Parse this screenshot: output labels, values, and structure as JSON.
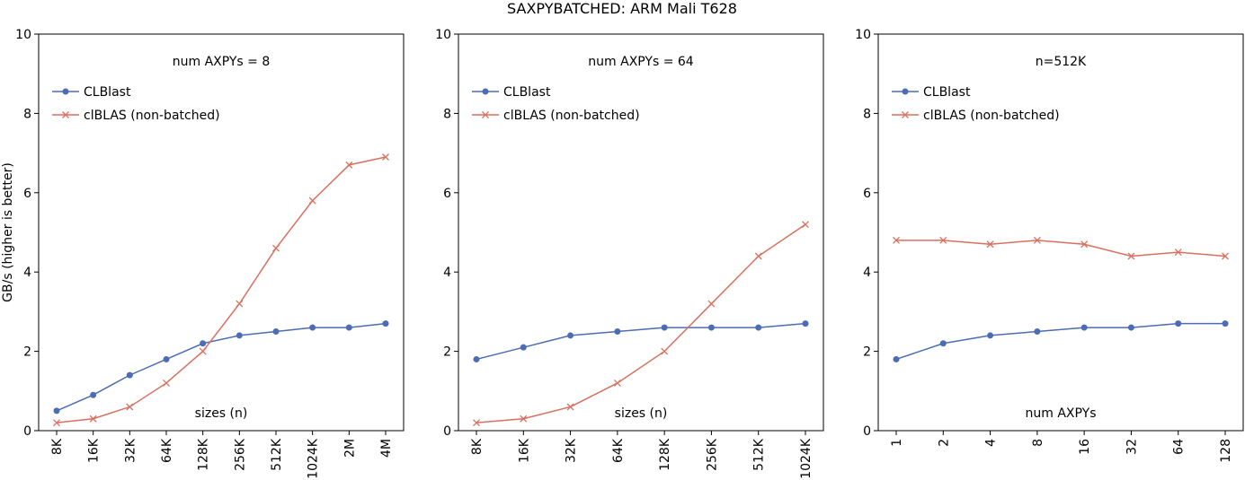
{
  "figure": {
    "title": "SAXPYBATCHED: ARM Mali T628"
  },
  "chart_data": [
    {
      "type": "line",
      "annotation": "num AXPYs = 8",
      "xlabel": "sizes (n)",
      "ylabel": "GB/s (higher is better)",
      "ylim": [
        0,
        10
      ],
      "yticks": [
        "0",
        "2",
        "4",
        "6",
        "8",
        "10"
      ],
      "categories": [
        "8K",
        "16K",
        "32K",
        "64K",
        "128K",
        "256K",
        "512K",
        "1024K",
        "2M",
        "4M"
      ],
      "legend_position": "top-left",
      "grid": false,
      "series": [
        {
          "name": "CLBlast",
          "color": "#4c6cb3",
          "marker": "circle",
          "values": [
            0.5,
            0.9,
            1.4,
            1.8,
            2.2,
            2.4,
            2.5,
            2.6,
            2.6,
            2.7
          ]
        },
        {
          "name": "clBLAS (non-batched)",
          "color": "#d9705f",
          "marker": "x",
          "values": [
            0.2,
            0.3,
            0.6,
            1.2,
            2.0,
            3.2,
            4.6,
            5.8,
            6.7,
            6.9
          ]
        }
      ]
    },
    {
      "type": "line",
      "annotation": "num AXPYs = 64",
      "xlabel": "sizes (n)",
      "ylabel": "",
      "ylim": [
        0,
        10
      ],
      "yticks": [
        "0",
        "2",
        "4",
        "6",
        "8",
        "10"
      ],
      "categories": [
        "8K",
        "16K",
        "32K",
        "64K",
        "128K",
        "256K",
        "512K",
        "1024K"
      ],
      "legend_position": "top-left",
      "grid": false,
      "series": [
        {
          "name": "CLBlast",
          "color": "#4c6cb3",
          "marker": "circle",
          "values": [
            1.8,
            2.1,
            2.4,
            2.5,
            2.6,
            2.6,
            2.6,
            2.7
          ]
        },
        {
          "name": "clBLAS (non-batched)",
          "color": "#d9705f",
          "marker": "x",
          "values": [
            0.2,
            0.3,
            0.6,
            1.2,
            2.0,
            3.2,
            4.4,
            5.2
          ]
        }
      ]
    },
    {
      "type": "line",
      "annotation": "n=512K",
      "xlabel": "num AXPYs",
      "ylabel": "",
      "ylim": [
        0,
        10
      ],
      "yticks": [
        "0",
        "2",
        "4",
        "6",
        "8",
        "10"
      ],
      "categories": [
        "1",
        "2",
        "4",
        "8",
        "16",
        "32",
        "64",
        "128"
      ],
      "legend_position": "top-left",
      "grid": false,
      "series": [
        {
          "name": "CLBlast",
          "color": "#4c6cb3",
          "marker": "circle",
          "values": [
            1.8,
            2.2,
            2.4,
            2.5,
            2.6,
            2.6,
            2.7,
            2.7
          ]
        },
        {
          "name": "clBLAS (non-batched)",
          "color": "#d9705f",
          "marker": "x",
          "values": [
            4.8,
            4.8,
            4.7,
            4.8,
            4.7,
            4.4,
            4.5,
            4.4
          ]
        }
      ]
    }
  ]
}
